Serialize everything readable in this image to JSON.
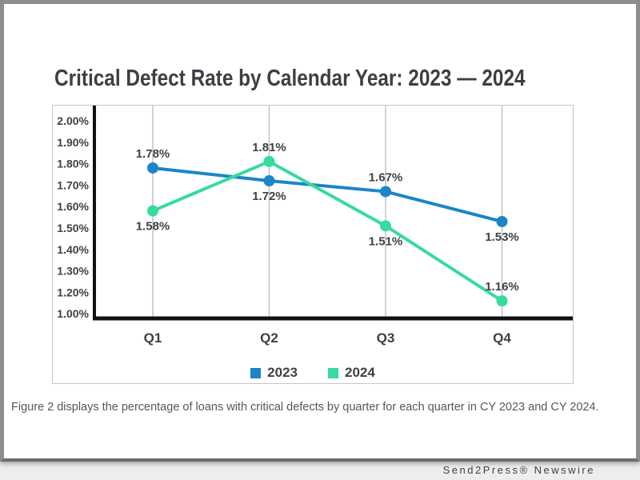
{
  "page": {
    "caption": "Figure 2 displays the percentage of loans with critical defects by quarter for each quarter in CY 2023 and CY 2024.",
    "credit": "Send2Press® Newswire"
  },
  "chart_data": {
    "type": "line",
    "title": "Critical Defect Rate by Calendar Year: 2023 — 2024",
    "categories": [
      "Q1",
      "Q2",
      "Q3",
      "Q4"
    ],
    "series": [
      {
        "name": "2023",
        "color": "#1c85c7",
        "values": [
          1.78,
          1.72,
          1.67,
          1.53
        ],
        "point_labels": [
          "1.78%",
          "1.72%",
          "1.67%",
          "1.53%"
        ],
        "label_positions": [
          "above",
          "below",
          "above",
          "below"
        ]
      },
      {
        "name": "2024",
        "color": "#36db9e",
        "values": [
          1.58,
          1.81,
          1.51,
          1.16
        ],
        "point_labels": [
          "1.58%",
          "1.81%",
          "1.51%",
          "1.16%"
        ],
        "label_positions": [
          "below",
          "above",
          "below",
          "above"
        ]
      }
    ],
    "xlabel": "",
    "ylabel": "",
    "y_ticks": [
      "2.00%",
      "1.90%",
      "1.80%",
      "1.70%",
      "1.60%",
      "1.50%",
      "1.40%",
      "1.30%",
      "1.20%",
      "1.00%"
    ],
    "y_top_value": 2.0,
    "y_tick_step": 0.1,
    "ylim": [
      1.0,
      2.0
    ],
    "grid": "vertical-only",
    "legend_position": "bottom-center",
    "style": {
      "axis_color": "#111111",
      "grid_color": "#c3c3c3",
      "tick_label_color": "#3e4247",
      "data_label_color": "#3e4247",
      "category_label_color": "#3c4045"
    }
  }
}
